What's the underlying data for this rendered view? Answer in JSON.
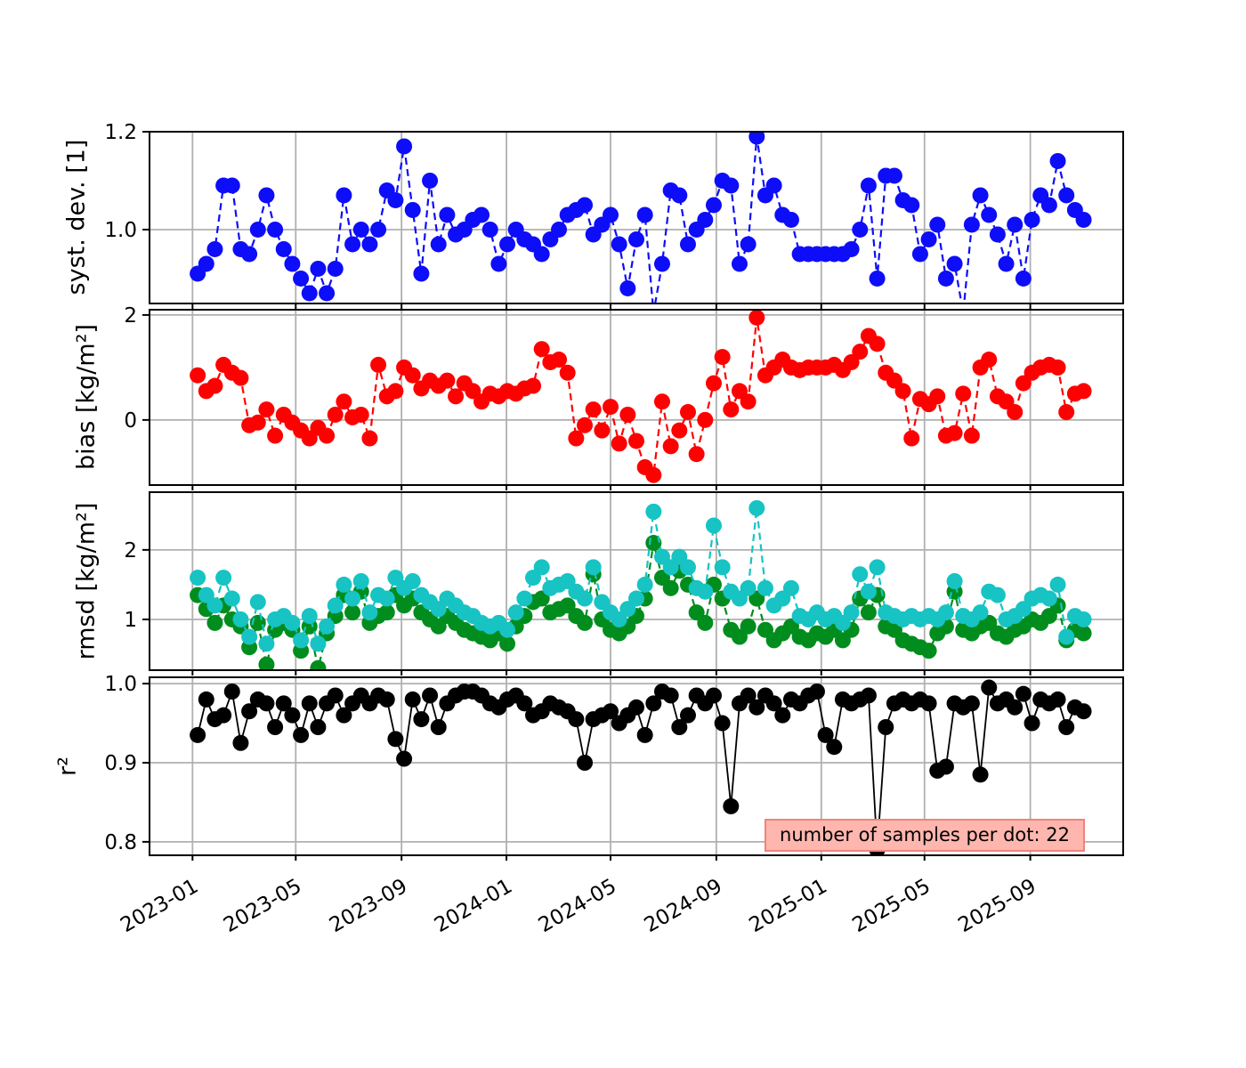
{
  "figure": {
    "background": "#ffffff",
    "grid_color": "#b0b0b0",
    "spine_color": "#000000"
  },
  "annotation": {
    "text": "number of samples per dot: 22",
    "fill": "#ffb6ae",
    "border": "#ef837b"
  },
  "x_axis": {
    "tick_labels": [
      "2023-01",
      "2023-05",
      "2023-09",
      "2024-01",
      "2024-05",
      "2024-09",
      "2025-01",
      "2025-05",
      "2025-09"
    ],
    "tick_dates": [
      "2023-01-01",
      "2023-05-01",
      "2023-09-01",
      "2024-01-01",
      "2024-05-01",
      "2024-09-01",
      "2025-01-01",
      "2025-05-01",
      "2025-09-01"
    ],
    "lim": [
      "2022-11-12",
      "2025-12-18"
    ],
    "rotation_deg": -30
  },
  "chart_data": {
    "type": "line",
    "grid": true,
    "marker": "o",
    "x_dates": [
      "2023-01-07",
      "2023-01-17",
      "2023-01-27",
      "2023-02-06",
      "2023-02-16",
      "2023-02-26",
      "2023-03-08",
      "2023-03-18",
      "2023-03-28",
      "2023-04-07",
      "2023-04-17",
      "2023-04-27",
      "2023-05-07",
      "2023-05-17",
      "2023-05-27",
      "2023-06-06",
      "2023-06-16",
      "2023-06-26",
      "2023-07-06",
      "2023-07-16",
      "2023-07-26",
      "2023-08-05",
      "2023-08-15",
      "2023-08-25",
      "2023-09-04",
      "2023-09-14",
      "2023-09-24",
      "2023-10-04",
      "2023-10-14",
      "2023-10-24",
      "2023-11-03",
      "2023-11-13",
      "2023-11-23",
      "2023-12-03",
      "2023-12-13",
      "2023-12-23",
      "2024-01-02",
      "2024-01-12",
      "2024-01-22",
      "2024-02-01",
      "2024-02-11",
      "2024-02-21",
      "2024-03-02",
      "2024-03-12",
      "2024-03-22",
      "2024-04-01",
      "2024-04-11",
      "2024-04-21",
      "2024-05-01",
      "2024-05-11",
      "2024-05-21",
      "2024-05-31",
      "2024-06-10",
      "2024-06-20",
      "2024-06-30",
      "2024-07-10",
      "2024-07-20",
      "2024-07-30",
      "2024-08-09",
      "2024-08-19",
      "2024-08-29",
      "2024-09-08",
      "2024-09-18",
      "2024-09-28",
      "2024-10-08",
      "2024-10-18",
      "2024-10-28",
      "2024-11-07",
      "2024-11-17",
      "2024-11-27",
      "2024-12-07",
      "2024-12-17",
      "2024-12-27",
      "2025-01-06",
      "2025-01-16",
      "2025-01-26",
      "2025-02-05",
      "2025-02-15",
      "2025-02-25",
      "2025-03-07",
      "2025-03-17",
      "2025-03-27",
      "2025-04-06",
      "2025-04-16",
      "2025-04-26",
      "2025-05-06",
      "2025-05-16",
      "2025-05-26",
      "2025-06-05",
      "2025-06-15",
      "2025-06-25",
      "2025-07-05",
      "2025-07-15",
      "2025-07-25",
      "2025-08-04",
      "2025-08-14",
      "2025-08-24",
      "2025-09-03",
      "2025-09-13",
      "2025-09-23",
      "2025-10-03",
      "2025-10-13",
      "2025-10-23",
      "2025-11-02"
    ],
    "subplots": [
      {
        "ylabel": "syst. dev. [1]",
        "ylim": [
          0.849,
          1.2
        ],
        "yticks": [
          1.0,
          1.2
        ],
        "ytick_labels": [
          "1.0",
          "1.2"
        ],
        "series": [
          {
            "name": "syst_dev",
            "color": "#0d0dfa",
            "linestyle": "dashed",
            "values": [
              0.91,
              0.93,
              0.96,
              1.09,
              1.09,
              0.96,
              0.95,
              1.0,
              1.07,
              1.0,
              0.96,
              0.93,
              0.9,
              0.87,
              0.92,
              0.87,
              0.92,
              1.07,
              0.97,
              1.0,
              0.97,
              1.0,
              1.08,
              1.06,
              1.17,
              1.04,
              0.91,
              1.1,
              0.97,
              1.03,
              0.99,
              1.0,
              1.02,
              1.03,
              1.0,
              0.93,
              0.97,
              1.0,
              0.98,
              0.97,
              0.95,
              0.98,
              1.0,
              1.03,
              1.04,
              1.05,
              0.99,
              1.01,
              1.03,
              0.97,
              0.88,
              0.98,
              1.03,
              0.83,
              0.93,
              1.08,
              1.07,
              0.97,
              1.0,
              1.02,
              1.05,
              1.1,
              1.09,
              0.93,
              0.97,
              1.19,
              1.07,
              1.09,
              1.03,
              1.02,
              0.95,
              0.95,
              0.95,
              0.95,
              0.95,
              0.95,
              0.96,
              1.0,
              1.09,
              0.9,
              1.11,
              1.11,
              1.06,
              1.05,
              0.95,
              0.98,
              1.01,
              0.9,
              0.93,
              0.83,
              1.01,
              1.07,
              1.03,
              0.99,
              0.93,
              1.01,
              0.9,
              1.02,
              1.07,
              1.05,
              1.14,
              1.07,
              1.04,
              1.02
            ]
          }
        ]
      },
      {
        "ylabel": "bias [kg/m²]",
        "ylim": [
          -1.24,
          2.1
        ],
        "yticks": [
          0,
          2
        ],
        "ytick_labels": [
          "0",
          "2"
        ],
        "series": [
          {
            "name": "bias",
            "color": "#ff0000",
            "linestyle": "dashed",
            "values": [
              0.85,
              0.55,
              0.65,
              1.05,
              0.9,
              0.8,
              -0.1,
              -0.05,
              0.2,
              -0.3,
              0.1,
              -0.05,
              -0.2,
              -0.35,
              -0.15,
              -0.3,
              0.1,
              0.35,
              0.05,
              0.1,
              -0.35,
              1.05,
              0.45,
              0.55,
              1.0,
              0.85,
              0.6,
              0.75,
              0.65,
              0.75,
              0.45,
              0.7,
              0.55,
              0.35,
              0.5,
              0.45,
              0.55,
              0.5,
              0.6,
              0.65,
              1.35,
              1.1,
              1.15,
              0.9,
              -0.35,
              -0.1,
              0.2,
              -0.2,
              0.25,
              -0.45,
              0.1,
              -0.4,
              -0.9,
              -1.05,
              0.35,
              -0.5,
              -0.2,
              0.15,
              -0.65,
              0.0,
              0.7,
              1.2,
              0.2,
              0.55,
              0.35,
              1.95,
              0.85,
              1.0,
              1.15,
              1.0,
              0.95,
              1.0,
              1.0,
              1.0,
              1.05,
              0.95,
              1.1,
              1.3,
              1.6,
              1.45,
              0.9,
              0.75,
              0.55,
              -0.35,
              0.4,
              0.3,
              0.45,
              -0.3,
              -0.25,
              0.5,
              -0.3,
              1.0,
              1.15,
              0.45,
              0.35,
              0.15,
              0.7,
              0.9,
              1.0,
              1.05,
              1.0,
              0.15,
              0.5,
              0.55
            ]
          }
        ]
      },
      {
        "ylabel": "rmsd [kg/m²]",
        "ylim": [
          0.27,
          2.83
        ],
        "yticks": [
          1,
          2
        ],
        "ytick_labels": [
          "1",
          "2"
        ],
        "series": [
          {
            "name": "rmsd_green",
            "color": "#008d1d",
            "linestyle": "dashed",
            "values": [
              1.35,
              1.15,
              0.95,
              1.2,
              1.0,
              0.9,
              0.6,
              0.95,
              0.35,
              0.85,
              0.95,
              0.85,
              0.55,
              0.9,
              0.3,
              0.8,
              1.05,
              1.35,
              1.1,
              1.4,
              0.95,
              1.05,
              1.1,
              1.35,
              1.2,
              1.3,
              1.1,
              1.0,
              0.9,
              1.05,
              0.95,
              0.85,
              0.8,
              0.75,
              0.7,
              0.8,
              0.65,
              0.9,
              1.05,
              1.25,
              1.3,
              1.1,
              1.15,
              1.2,
              1.05,
              0.95,
              1.65,
              1.0,
              0.85,
              0.8,
              0.9,
              1.05,
              1.3,
              2.1,
              1.6,
              1.45,
              1.7,
              1.5,
              1.1,
              0.95,
              1.5,
              1.3,
              0.85,
              0.75,
              0.9,
              1.3,
              0.85,
              0.7,
              0.8,
              0.9,
              0.75,
              0.7,
              0.8,
              0.75,
              0.85,
              0.7,
              0.85,
              1.3,
              1.1,
              1.35,
              0.9,
              0.85,
              0.7,
              0.65,
              0.6,
              0.55,
              0.8,
              0.9,
              1.4,
              0.85,
              0.8,
              0.9,
              0.95,
              0.8,
              0.75,
              0.85,
              0.9,
              1.0,
              0.95,
              1.05,
              1.2,
              0.7,
              0.85,
              0.8
            ]
          },
          {
            "name": "rmsd_cyan",
            "color": "#17c3c3",
            "linestyle": "dashed",
            "values": [
              1.6,
              1.35,
              1.2,
              1.6,
              1.3,
              1.0,
              0.75,
              1.25,
              0.65,
              1.0,
              1.05,
              0.95,
              0.7,
              1.05,
              0.65,
              0.9,
              1.2,
              1.5,
              1.3,
              1.55,
              1.1,
              1.35,
              1.3,
              1.6,
              1.45,
              1.55,
              1.35,
              1.25,
              1.15,
              1.3,
              1.2,
              1.1,
              1.05,
              0.95,
              0.9,
              0.95,
              0.85,
              1.1,
              1.3,
              1.6,
              1.75,
              1.45,
              1.5,
              1.55,
              1.4,
              1.3,
              1.75,
              1.25,
              1.1,
              1.0,
              1.15,
              1.3,
              1.5,
              2.55,
              1.9,
              1.75,
              1.9,
              1.75,
              1.45,
              1.4,
              2.35,
              1.75,
              1.4,
              1.3,
              1.45,
              2.6,
              1.45,
              1.2,
              1.3,
              1.45,
              1.05,
              1.0,
              1.1,
              1.0,
              1.05,
              0.95,
              1.1,
              1.65,
              1.4,
              1.75,
              1.1,
              1.05,
              1.0,
              1.05,
              1.0,
              1.05,
              1.0,
              1.1,
              1.55,
              1.05,
              1.0,
              1.1,
              1.4,
              1.35,
              1.0,
              1.05,
              1.15,
              1.3,
              1.35,
              1.3,
              1.5,
              0.75,
              1.05,
              1.0
            ]
          }
        ]
      },
      {
        "ylabel": "r²",
        "ylim": [
          0.783,
          1.008
        ],
        "yticks": [
          0.8,
          0.9,
          1.0
        ],
        "ytick_labels": [
          "0.8",
          "0.9",
          "1.0"
        ],
        "series": [
          {
            "name": "r_squared",
            "color": "#000000",
            "linestyle": "solid",
            "values": [
              0.935,
              0.98,
              0.955,
              0.96,
              0.99,
              0.925,
              0.965,
              0.98,
              0.975,
              0.945,
              0.975,
              0.96,
              0.935,
              0.975,
              0.945,
              0.975,
              0.985,
              0.96,
              0.975,
              0.985,
              0.975,
              0.985,
              0.98,
              0.93,
              0.905,
              0.98,
              0.955,
              0.985,
              0.945,
              0.975,
              0.985,
              0.99,
              0.99,
              0.985,
              0.975,
              0.97,
              0.98,
              0.985,
              0.975,
              0.96,
              0.965,
              0.975,
              0.97,
              0.965,
              0.955,
              0.9,
              0.955,
              0.96,
              0.965,
              0.95,
              0.96,
              0.97,
              0.935,
              0.975,
              0.99,
              0.985,
              0.945,
              0.96,
              0.985,
              0.975,
              0.985,
              0.95,
              0.845,
              0.975,
              0.985,
              0.97,
              0.985,
              0.975,
              0.96,
              0.98,
              0.975,
              0.985,
              0.99,
              0.935,
              0.92,
              0.98,
              0.975,
              0.98,
              0.985,
              0.79,
              0.945,
              0.975,
              0.98,
              0.975,
              0.98,
              0.975,
              0.89,
              0.895,
              0.975,
              0.97,
              0.975,
              0.885,
              0.995,
              0.975,
              0.98,
              0.97,
              0.987,
              0.95,
              0.98,
              0.975,
              0.98,
              0.945,
              0.97,
              0.965
            ]
          }
        ]
      }
    ]
  }
}
